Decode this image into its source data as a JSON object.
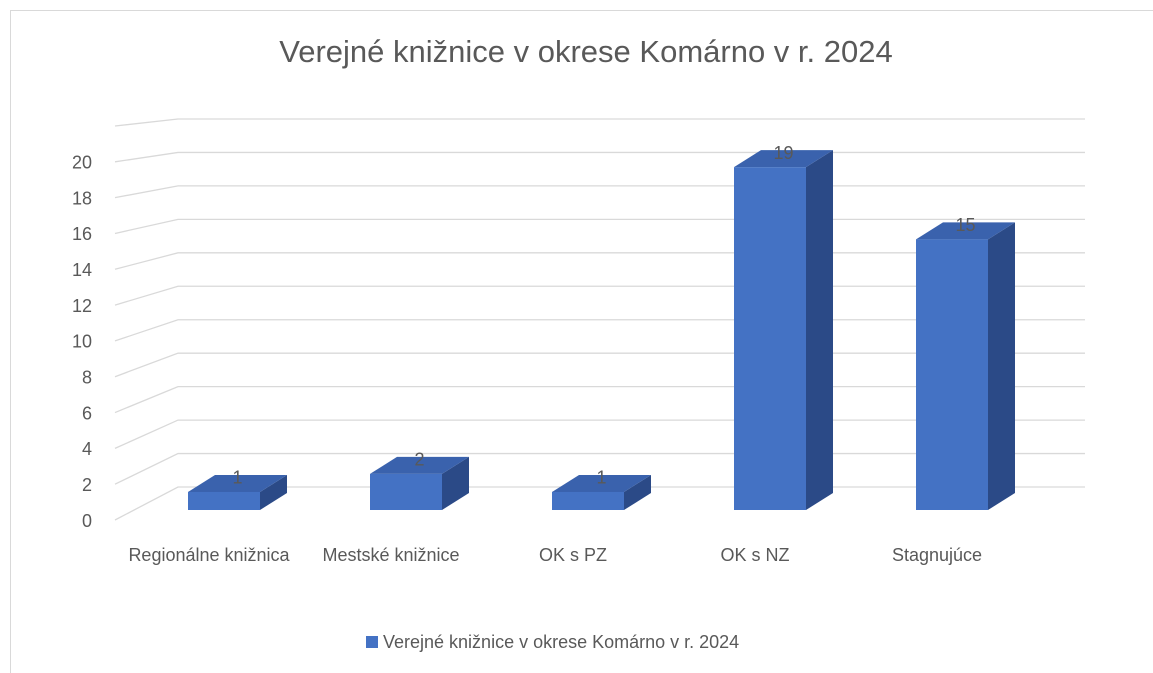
{
  "chart_data": {
    "type": "bar3d",
    "title": "Verejné knižnice v okrese Komárno v r. 2024",
    "categories": [
      "Regionálne knižnica",
      "Mestské knižnice",
      "OK s PZ",
      "OK s NZ",
      "Stagnujúce"
    ],
    "series": [
      {
        "name": "Verejné knižnice v okrese Komárno v r. 2024",
        "color": "#4472c4",
        "values": [
          1,
          2,
          1,
          19,
          15
        ]
      }
    ],
    "ylim": [
      0,
      22
    ],
    "yticks": [
      0,
      2,
      4,
      6,
      8,
      10,
      12,
      14,
      16,
      18,
      20
    ],
    "grid": true,
    "legend": "bottom"
  }
}
